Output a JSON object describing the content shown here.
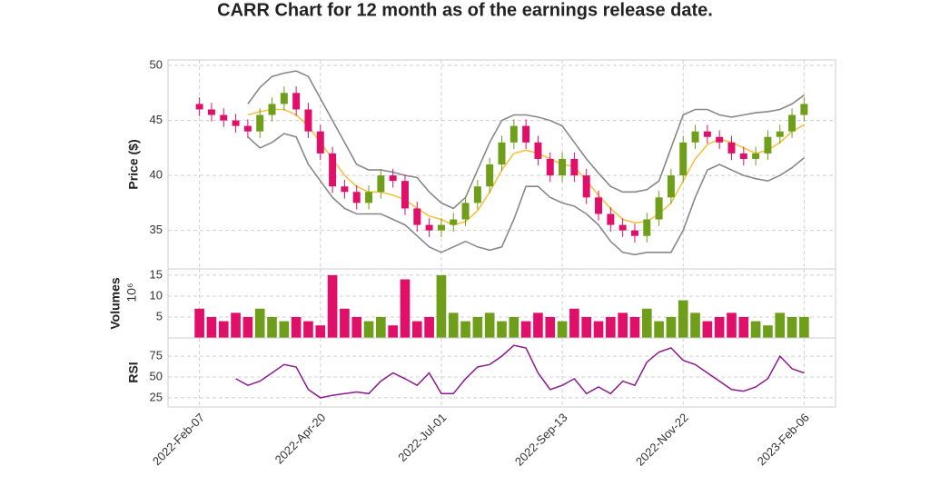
{
  "chart_data": [
    {
      "type": "candlestick",
      "title": "CARR Chart for 12 month as of the earnings release date.",
      "ylabel": "Price ($)",
      "x": [
        0,
        5,
        10,
        15,
        20,
        25,
        30,
        35,
        40,
        45,
        50,
        55,
        60,
        65,
        70,
        75,
        80,
        85,
        90,
        95,
        100,
        105,
        110,
        115,
        120,
        125,
        130,
        135,
        140,
        145,
        150,
        155,
        160,
        165,
        170,
        175,
        180,
        185,
        190,
        195,
        200,
        205,
        210,
        215,
        220,
        225,
        230,
        235,
        240,
        245,
        250
      ],
      "open": [
        46.5,
        46,
        45.5,
        45,
        44.5,
        44,
        45.5,
        46.5,
        47.5,
        46,
        44,
        42,
        39,
        38.5,
        37.5,
        38.5,
        40,
        39.5,
        37,
        35.5,
        35,
        35.5,
        36,
        37.5,
        39,
        41,
        43,
        44.5,
        43,
        41.5,
        40,
        41.5,
        40,
        38,
        36.5,
        35.5,
        35,
        34.5,
        36,
        38,
        40,
        43,
        44,
        43.5,
        43,
        42,
        41.5,
        42,
        43.5,
        44,
        45.5
      ],
      "high": [
        47.1,
        46.6,
        46.1,
        45.6,
        45.1,
        46.1,
        47.1,
        48.1,
        48.1,
        46.6,
        44.6,
        42.6,
        39.6,
        39.1,
        39.1,
        40.6,
        40.6,
        40.1,
        37.6,
        36.1,
        36.1,
        36.6,
        38.1,
        39.6,
        41.6,
        43.6,
        45.1,
        45.1,
        43.6,
        42.1,
        42.1,
        42.1,
        40.6,
        38.6,
        37.1,
        36.1,
        35.6,
        36.6,
        38.6,
        40.6,
        43.6,
        44.6,
        44.6,
        44.1,
        43.6,
        42.6,
        42.6,
        44.1,
        44.6,
        46.1,
        47.1
      ],
      "low": [
        45.4,
        44.9,
        44.4,
        43.9,
        43.4,
        43.4,
        44.9,
        45.9,
        45.4,
        43.4,
        41.4,
        38.4,
        37.9,
        36.9,
        36.9,
        37.9,
        38.9,
        36.4,
        34.9,
        34.4,
        34.4,
        34.9,
        35.4,
        36.9,
        38.4,
        40.4,
        42.4,
        42.4,
        40.9,
        39.4,
        39.4,
        39.4,
        37.4,
        35.9,
        34.9,
        34.4,
        33.9,
        33.9,
        35.4,
        37.4,
        39.4,
        42.4,
        42.9,
        42.4,
        41.4,
        40.9,
        40.9,
        41.4,
        42.9,
        43.4,
        44.9
      ],
      "close": [
        46,
        45.5,
        45,
        44.5,
        44,
        45.5,
        46.5,
        47.5,
        46,
        44,
        42,
        39,
        38.5,
        37.5,
        38.5,
        40,
        39.5,
        37,
        35.5,
        35,
        35.5,
        36,
        37.5,
        39,
        41,
        43,
        44.5,
        43,
        41.5,
        40,
        41.5,
        40,
        38,
        36.5,
        35.5,
        35,
        34.5,
        36,
        38,
        40,
        43,
        44,
        43.5,
        43,
        42,
        41.5,
        42,
        43.5,
        44,
        45.5,
        46.5
      ],
      "up_color": "#6f9f1a",
      "down_color": "#e0106a",
      "overlays": [
        {
          "color": "#888888",
          "values": [
            null,
            null,
            null,
            null,
            46.5,
            48,
            49,
            49.3,
            49.5,
            49,
            47,
            45,
            43,
            41,
            40.5,
            40.5,
            40.3,
            40,
            39.8,
            38.5,
            37.5,
            37,
            38,
            40.5,
            43,
            45,
            45.5,
            45.5,
            45.3,
            45,
            44.5,
            43,
            41.5,
            40.2,
            39,
            38.5,
            38.5,
            38.7,
            39.5,
            42.5,
            45.5,
            46,
            46,
            45.5,
            45.3,
            45.5,
            45.7,
            45.8,
            46,
            46.5,
            47.3
          ]
        },
        {
          "color": "#f5c242",
          "values": [
            null,
            null,
            null,
            null,
            45.5,
            45.8,
            46,
            46,
            45.5,
            44.5,
            43,
            41.5,
            40,
            39,
            38.5,
            38.5,
            38.2,
            37.8,
            37,
            36.3,
            36,
            35.5,
            35.8,
            36.8,
            38.5,
            40.5,
            42,
            42.3,
            42,
            41.5,
            41,
            40.8,
            39.5,
            38.2,
            37,
            36,
            35.7,
            35.8,
            36.5,
            37.5,
            39.5,
            41.5,
            42.8,
            43.3,
            43,
            42.5,
            42,
            42.3,
            43,
            44,
            44.6
          ]
        },
        {
          "color": "#888888",
          "values": [
            null,
            null,
            null,
            null,
            43.5,
            42.5,
            43,
            43.8,
            43.5,
            41,
            39.5,
            38,
            37,
            36.5,
            36.5,
            36.5,
            36,
            35.5,
            34.5,
            33.5,
            33,
            33.5,
            34,
            33.5,
            33.2,
            33.5,
            36,
            39,
            39,
            38,
            37.5,
            37.2,
            36.5,
            35.5,
            34,
            33,
            32.8,
            33,
            33,
            33,
            35,
            38,
            40.5,
            41,
            40.5,
            40,
            39.7,
            39.5,
            40,
            40.7,
            41.6
          ]
        }
      ],
      "xlim": [
        -13,
        263
      ],
      "ylim": [
        31.5,
        50.5
      ],
      "yticks": [
        35,
        40,
        45,
        50
      ],
      "grid": true
    },
    {
      "type": "bar",
      "ylabel": "Volumes",
      "multiplier_label": "10⁶",
      "values": [
        7,
        5,
        4,
        6,
        5,
        7,
        5,
        4,
        5,
        4,
        3,
        15,
        7,
        5,
        4,
        5,
        3,
        14,
        4,
        5,
        15,
        6,
        4,
        5,
        6,
        4,
        5,
        4,
        6,
        5,
        4,
        7,
        5,
        4,
        5,
        6,
        5,
        7,
        4,
        5,
        9,
        6,
        4,
        5,
        6,
        5,
        4,
        3,
        6,
        5,
        5
      ],
      "ylim": [
        0,
        16.5
      ],
      "yticks": [
        5,
        10,
        15
      ],
      "grid": true
    },
    {
      "type": "line",
      "ylabel": "RSI",
      "color": "#8b1a8b",
      "values": [
        null,
        null,
        null,
        48,
        40,
        45,
        55,
        65,
        62,
        35,
        25,
        28,
        30,
        32,
        30,
        45,
        55,
        48,
        40,
        55,
        30,
        30,
        48,
        62,
        65,
        75,
        88,
        85,
        55,
        35,
        40,
        48,
        30,
        38,
        30,
        45,
        40,
        68,
        80,
        85,
        70,
        65,
        55,
        45,
        35,
        33,
        38,
        48,
        75,
        60,
        55
      ],
      "ylim": [
        14,
        97
      ],
      "yticks": [
        25,
        50,
        75
      ],
      "grid": true,
      "xticks": [
        {
          "value": 0,
          "label": "2022-Feb-07"
        },
        {
          "value": 50,
          "label": "2022-Apr-20"
        },
        {
          "value": 100,
          "label": "2022-Jul-01"
        },
        {
          "value": 150,
          "label": "2022-Sep-13"
        },
        {
          "value": 200,
          "label": "2022-Nov-22"
        },
        {
          "value": 250,
          "label": "2023-Feb-06"
        }
      ]
    }
  ]
}
